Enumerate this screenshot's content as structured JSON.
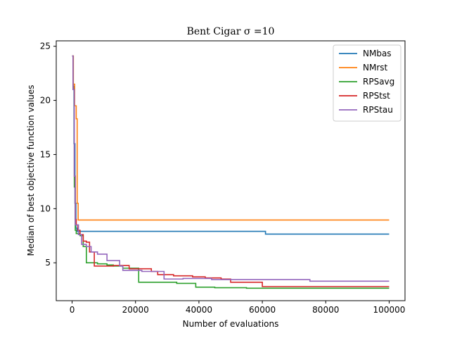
{
  "chart_data": {
    "type": "line",
    "title": "Bent Cigar σ =10",
    "xlabel": "Number of evaluations",
    "ylabel": "Median of best objective function values",
    "xlim": [
      -5000,
      105000
    ],
    "ylim": [
      1.5,
      25.5
    ],
    "xticks": [
      0,
      20000,
      40000,
      60000,
      80000,
      100000
    ],
    "yticks": [
      5,
      10,
      15,
      20,
      25
    ],
    "legend_position": "top-right",
    "grid": false,
    "series": [
      {
        "name": "NMbas",
        "color": "#1f77b4",
        "step": true,
        "points": [
          [
            0,
            24.1
          ],
          [
            300,
            21.3
          ],
          [
            600,
            16.0
          ],
          [
            900,
            10.5
          ],
          [
            1200,
            8.2
          ],
          [
            1500,
            7.9
          ],
          [
            61000,
            7.9
          ],
          [
            61000,
            7.65
          ],
          [
            100000,
            7.65
          ]
        ]
      },
      {
        "name": "NMrst",
        "color": "#ff7f0e",
        "step": true,
        "points": [
          [
            0,
            24.1
          ],
          [
            400,
            21.5
          ],
          [
            800,
            19.5
          ],
          [
            1300,
            18.3
          ],
          [
            1600,
            10.5
          ],
          [
            1900,
            8.95
          ],
          [
            100000,
            8.95
          ]
        ]
      },
      {
        "name": "RPSavg",
        "color": "#2ca02c",
        "step": true,
        "points": [
          [
            0,
            24.1
          ],
          [
            300,
            21.0
          ],
          [
            700,
            12.0
          ],
          [
            1000,
            8.0
          ],
          [
            1300,
            7.7
          ],
          [
            2500,
            7.5
          ],
          [
            3500,
            6.5
          ],
          [
            4500,
            5.0
          ],
          [
            8000,
            4.9
          ],
          [
            11000,
            4.8
          ],
          [
            13000,
            4.7
          ],
          [
            16000,
            4.5
          ],
          [
            21000,
            3.2
          ],
          [
            33000,
            3.1
          ],
          [
            39000,
            2.75
          ],
          [
            45000,
            2.7
          ],
          [
            55000,
            2.65
          ],
          [
            100000,
            2.65
          ]
        ]
      },
      {
        "name": "RPStst",
        "color": "#d62728",
        "step": true,
        "points": [
          [
            0,
            24.1
          ],
          [
            300,
            21.0
          ],
          [
            700,
            13.0
          ],
          [
            1000,
            9.0
          ],
          [
            1300,
            8.5
          ],
          [
            1800,
            8.0
          ],
          [
            2500,
            7.6
          ],
          [
            3500,
            7.0
          ],
          [
            4500,
            6.9
          ],
          [
            5500,
            6.0
          ],
          [
            7000,
            4.7
          ],
          [
            13000,
            4.75
          ],
          [
            18000,
            4.45
          ],
          [
            25000,
            4.2
          ],
          [
            27000,
            3.9
          ],
          [
            32000,
            3.8
          ],
          [
            38000,
            3.7
          ],
          [
            42000,
            3.6
          ],
          [
            47000,
            3.5
          ],
          [
            50000,
            3.2
          ],
          [
            60000,
            2.8
          ],
          [
            100000,
            2.8
          ]
        ]
      },
      {
        "name": "RPStau",
        "color": "#9467bd",
        "step": true,
        "points": [
          [
            0,
            24.1
          ],
          [
            300,
            21.0
          ],
          [
            700,
            13.0
          ],
          [
            1000,
            8.5
          ],
          [
            2000,
            7.6
          ],
          [
            3000,
            6.7
          ],
          [
            4500,
            6.5
          ],
          [
            6000,
            6.0
          ],
          [
            8000,
            5.8
          ],
          [
            11000,
            5.2
          ],
          [
            15000,
            4.7
          ],
          [
            16000,
            4.3
          ],
          [
            22000,
            4.2
          ],
          [
            29000,
            3.5
          ],
          [
            35000,
            3.55
          ],
          [
            44000,
            3.45
          ],
          [
            75000,
            3.3
          ],
          [
            100000,
            3.3
          ]
        ]
      }
    ]
  }
}
